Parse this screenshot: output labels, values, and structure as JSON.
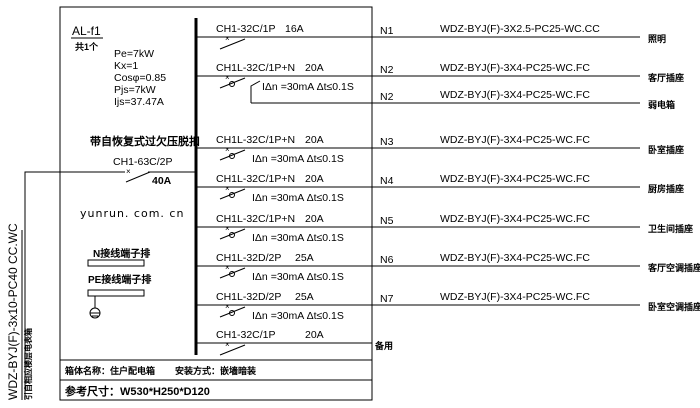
{
  "panel": {
    "name": "AL-f1",
    "count": "共1个",
    "params": [
      "Pe=7kW",
      "Kx=1",
      "Cosφ=0.85",
      "Pjs=7kW",
      "Ijs=37.47A"
    ],
    "main_breaker_note": "带自恢复式过欠压脱扣",
    "main_breaker": "CH1-63C/2P",
    "main_rating": "40A",
    "watermark": "yunrun. com. cn",
    "n_terminal": "N接线端子排",
    "pe_terminal": "PE接线端子排",
    "box_name": "箱体名称：住户配电箱",
    "install": "安装方式：嵌墙暗装",
    "size": "参考尺寸：W530*H250*D120"
  },
  "incoming": {
    "cable": "WDZ-BYJ(F)-3x10-PC40 CC.WC",
    "source": "引自相应楼层电表箱"
  },
  "rcd_text": "IΔn =30mA  Δt≤0.1S",
  "circuits": [
    {
      "breaker": "CH1-32C/1P",
      "rating": "16A",
      "rcd": false,
      "no": "N1",
      "cable": "WDZ-BYJ(F)-3X2.5-PC25-WC.CC",
      "desc": "照明"
    },
    {
      "breaker": "CH1L-32C/1P+N",
      "rating": "20A",
      "rcd": true,
      "no": "N2",
      "cable": "WDZ-BYJ(F)-3X4-PC25-WC.FC",
      "desc": "客厅插座"
    },
    {
      "breaker": "",
      "rating": "",
      "rcd": false,
      "no": "N2",
      "cable": "WDZ-BYJ(F)-3X4-PC25-WC.FC",
      "desc": "弱电箱"
    },
    {
      "breaker": "CH1L-32C/1P+N",
      "rating": "20A",
      "rcd": true,
      "no": "N3",
      "cable": "WDZ-BYJ(F)-3X4-PC25-WC.FC",
      "desc": "卧室插座"
    },
    {
      "breaker": "CH1L-32C/1P+N",
      "rating": "20A",
      "rcd": true,
      "no": "N4",
      "cable": "WDZ-BYJ(F)-3X4-PC25-WC.FC",
      "desc": "厨房插座"
    },
    {
      "breaker": "CH1L-32C/1P+N",
      "rating": "20A",
      "rcd": true,
      "no": "N5",
      "cable": "WDZ-BYJ(F)-3X4-PC25-WC.FC",
      "desc": "卫生间插座"
    },
    {
      "breaker": "CH1L-32D/2P",
      "rating": "25A",
      "rcd": true,
      "no": "N6",
      "cable": "WDZ-BYJ(F)-3X4-PC25-WC.FC",
      "desc": "客厅空调插座"
    },
    {
      "breaker": "CH1L-32D/2P",
      "rating": "25A",
      "rcd": true,
      "no": "N7",
      "cable": "WDZ-BYJ(F)-3X4-PC25-WC.FC",
      "desc": "卧室空调插座"
    },
    {
      "breaker": "CH1-32C/1P",
      "rating": "20A",
      "rcd": false,
      "no": "",
      "cable": "",
      "desc": "备用"
    }
  ]
}
